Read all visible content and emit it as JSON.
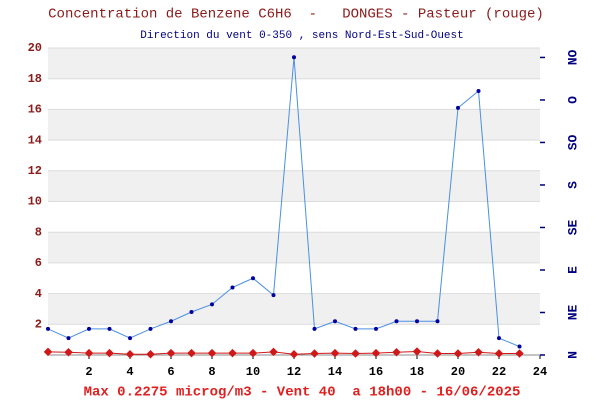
{
  "chart_data": {
    "type": "line",
    "title": "Concentration de Benzene C6H6  -   DONGES - Pasteur (rouge)",
    "subtitle": "Direction du vent 0-350 , sens Nord-Est-Sud-Ouest",
    "footer": "Max 0.2275 microg/m3 - Vent 40  a 18h00 - 16/06/2025",
    "x": [
      0,
      1,
      2,
      3,
      4,
      5,
      6,
      7,
      8,
      9,
      10,
      11,
      12,
      13,
      14,
      15,
      16,
      17,
      18,
      19,
      20,
      21,
      22,
      23
    ],
    "series": [
      {
        "color": "#4a90e2",
        "axis": "y",
        "values": [
          1.7,
          1.1,
          1.7,
          1.7,
          1.1,
          1.7,
          2.2,
          2.8,
          3.3,
          4.4,
          5.0,
          3.9,
          19.4,
          1.7,
          2.2,
          1.7,
          1.7,
          2.2,
          2.2,
          2.2,
          16.1,
          17.2,
          1.1,
          0.55
        ]
      },
      {
        "color": "#d01818",
        "axis": "y",
        "values": [
          0.2,
          0.18,
          0.12,
          0.12,
          0.05,
          0.05,
          0.12,
          0.12,
          0.12,
          0.12,
          0.12,
          0.2,
          0.05,
          0.1,
          0.12,
          0.1,
          0.12,
          0.18,
          0.2275,
          0.1,
          0.1,
          0.18,
          0.1,
          0.1
        ]
      }
    ],
    "xlim": [
      0,
      24
    ],
    "xticks": [
      2,
      4,
      6,
      8,
      10,
      12,
      14,
      16,
      18,
      20,
      22,
      24
    ],
    "ylim": [
      0,
      20
    ],
    "yticks": [
      2,
      4,
      6,
      8,
      10,
      12,
      14,
      16,
      18,
      20
    ],
    "y2lim": [
      0,
      325
    ],
    "y2ticks": [
      {
        "value": 0,
        "label": "N"
      },
      {
        "value": 45,
        "label": "NE"
      },
      {
        "value": 90,
        "label": "E"
      },
      {
        "value": 135,
        "label": "SE"
      },
      {
        "value": 180,
        "label": "S"
      },
      {
        "value": 225,
        "label": "SO"
      },
      {
        "value": 270,
        "label": "O"
      },
      {
        "value": 315,
        "label": "NO"
      }
    ],
    "grid": true
  }
}
